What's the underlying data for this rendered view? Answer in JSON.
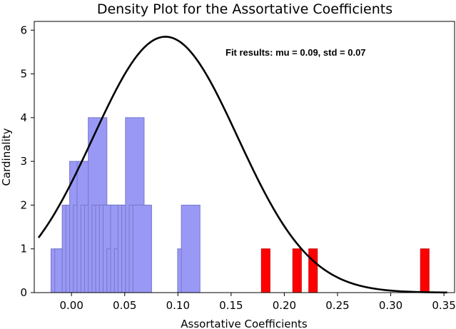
{
  "chart_data": {
    "type": "bar",
    "title": "Density Plot for the Assortative Coefficients",
    "xlabel": "Assortative Coefficients",
    "ylabel": "Cardinality",
    "xlim": [
      -0.035,
      0.36
    ],
    "ylim": [
      0,
      6.2
    ],
    "xticks": [
      0.0,
      0.05,
      0.1,
      0.15,
      0.2,
      0.25,
      0.3,
      0.35
    ],
    "xtick_labels": [
      "0.00",
      "0.05",
      "0.10",
      "0.15",
      "0.20",
      "0.25",
      "0.30",
      "0.35"
    ],
    "yticks": [
      0,
      1,
      2,
      3,
      4,
      5,
      6
    ],
    "ytick_labels": [
      "0",
      "1",
      "2",
      "3",
      "4",
      "5",
      "6"
    ],
    "bin_width": 0.0175,
    "grid": false,
    "annotation": "Fit results: mu = 0.09,  std = 0.07",
    "colors": {
      "histogram_fill": "#9999f5",
      "histogram_edge": "#7777cc",
      "highlight_fill": "#ff0000",
      "fit_curve": "#000000"
    },
    "series": [
      {
        "kind": "histogram",
        "x": [
          -0.0105,
          -0.007,
          -0.0035,
          0.0,
          0.0035,
          0.007,
          0.0105,
          0.014,
          0.0175,
          0.021,
          0.0245,
          0.028,
          0.0315,
          0.035,
          0.0385,
          0.042,
          0.0455,
          0.049,
          0.0525,
          0.056,
          0.0595,
          0.063,
          0.0665,
          0.07,
          0.0735,
          0.077,
          0.0805,
          0.084,
          0.0875,
          0.091,
          0.0945,
          0.098,
          0.1015,
          0.105,
          0.1085,
          0.112,
          0.1155,
          0.119,
          0.1225,
          0.126,
          0.1295,
          0.133,
          0.1365,
          0.14,
          0.1435,
          0.147,
          0.1505,
          0.154,
          0.1575,
          0.161
        ],
        "values": [
          1,
          1,
          0,
          2,
          2,
          3,
          2,
          3,
          2,
          2,
          4,
          2,
          2,
          2,
          2,
          1,
          2,
          1,
          2,
          2,
          4,
          2,
          2,
          0,
          0,
          0,
          0,
          0,
          0,
          0,
          0,
          0,
          0,
          0,
          1,
          2,
          0,
          0,
          0,
          0,
          0,
          0,
          0,
          0,
          0,
          0,
          0,
          0,
          0,
          0
        ]
      },
      {
        "kind": "highlight_bars",
        "x": [
          0.1825,
          0.212,
          0.227,
          0.332
        ],
        "values": [
          1,
          1,
          1,
          1
        ]
      },
      {
        "kind": "normal_fit",
        "mu": 0.0883,
        "std": 0.068,
        "scale": 5.85,
        "x_range": [
          -0.031,
          0.353
        ]
      }
    ]
  }
}
